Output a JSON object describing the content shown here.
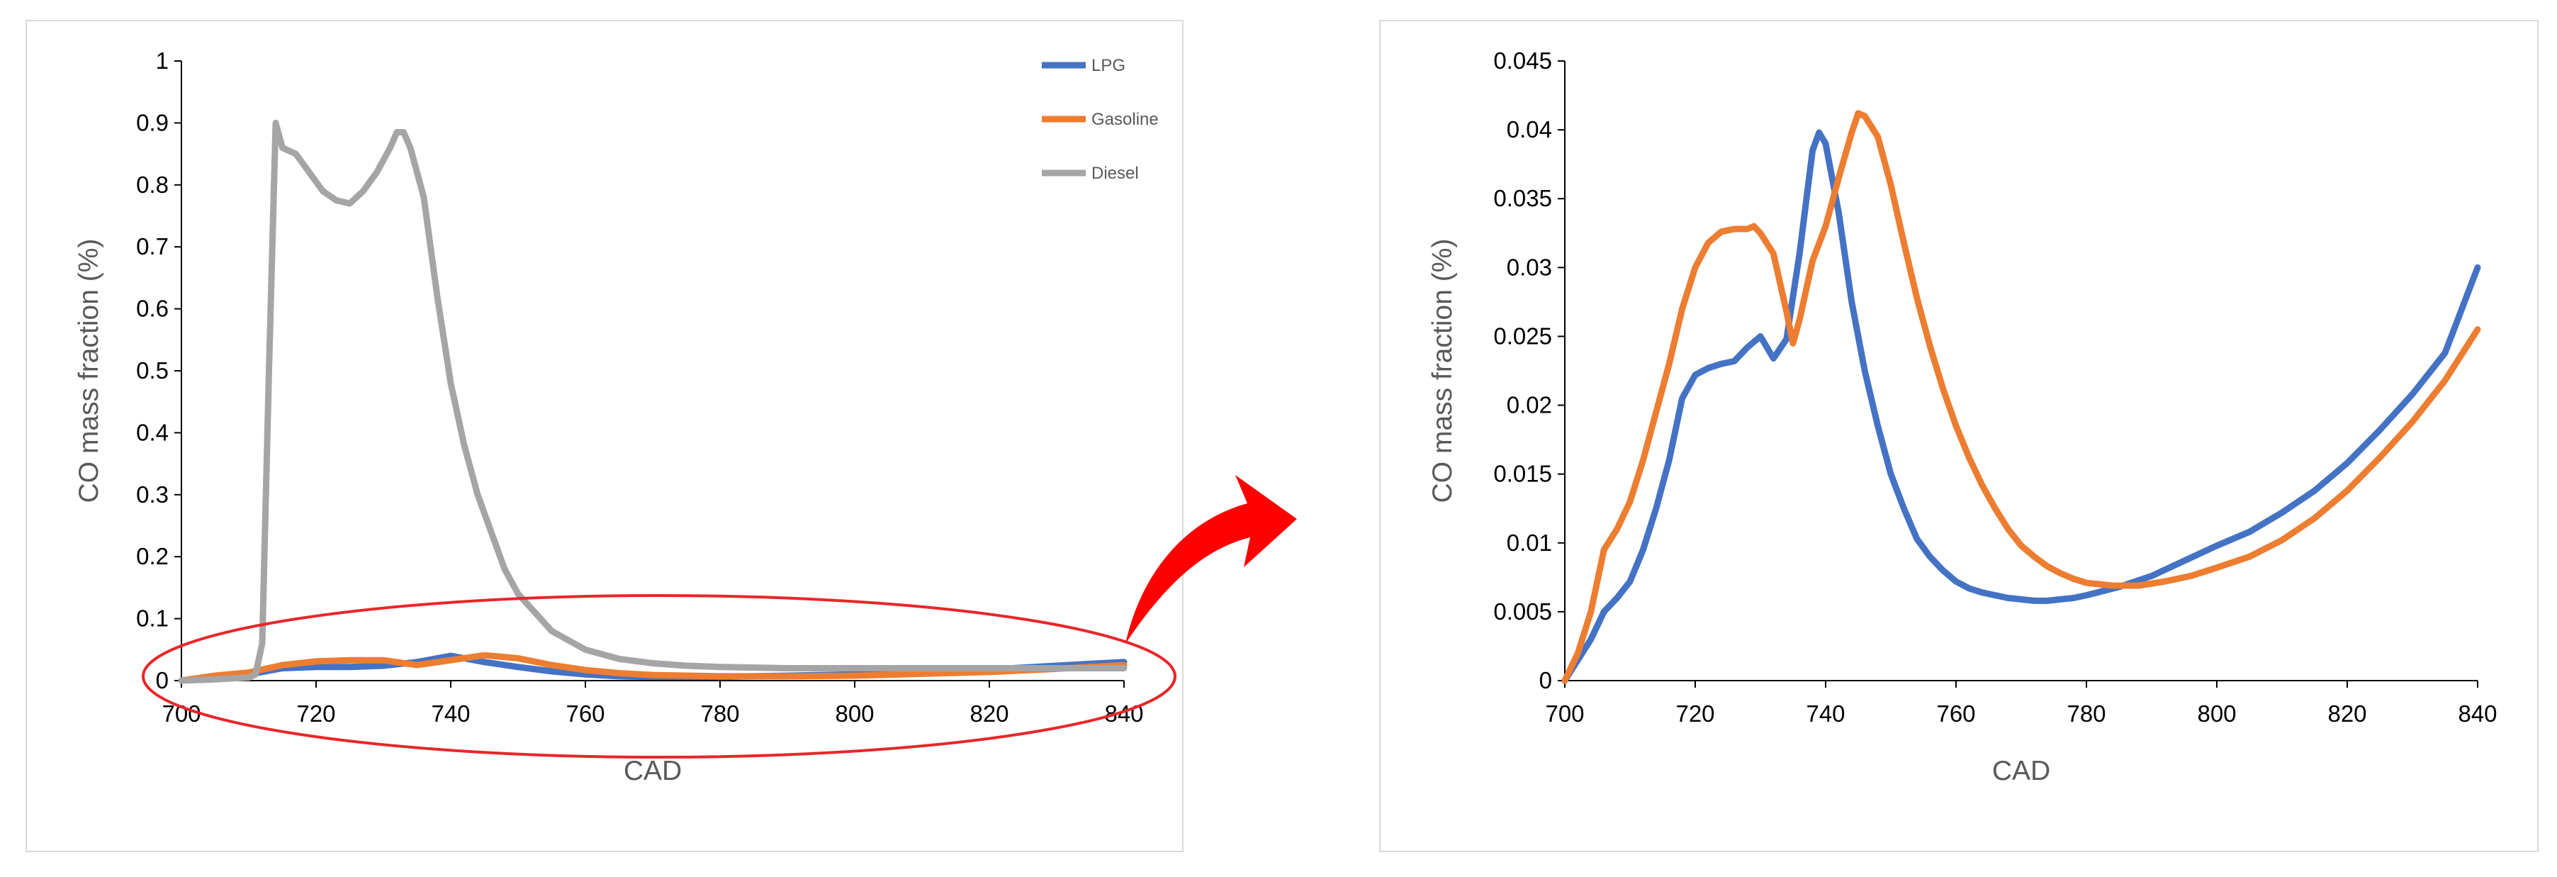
{
  "chart_data": [
    {
      "type": "line",
      "title": "",
      "xlabel": "CAD",
      "ylabel": "CO mass fraction (%)",
      "xlim": [
        700,
        840
      ],
      "ylim": [
        0,
        1
      ],
      "xticks": [
        "700",
        "720",
        "740",
        "760",
        "780",
        "800",
        "820",
        "840"
      ],
      "yticks": [
        "0",
        "0.1",
        "0.2",
        "0.3",
        "0.4",
        "0.5",
        "0.6",
        "0.7",
        "0.8",
        "0.9",
        "1"
      ],
      "legend_position": "top-right",
      "grid": false,
      "series": [
        {
          "name": "LPG",
          "color": "#4472C4",
          "x": [
            700,
            705,
            710,
            715,
            720,
            725,
            730,
            735,
            740,
            745,
            750,
            755,
            760,
            765,
            770,
            775,
            780,
            790,
            800,
            810,
            820,
            830,
            840
          ],
          "y": [
            0,
            0.005,
            0.01,
            0.02,
            0.022,
            0.022,
            0.024,
            0.03,
            0.04,
            0.03,
            0.022,
            0.015,
            0.01,
            0.007,
            0.006,
            0.006,
            0.006,
            0.008,
            0.01,
            0.014,
            0.018,
            0.024,
            0.03
          ]
        },
        {
          "name": "Gasoline",
          "color": "#ED7D31",
          "x": [
            700,
            705,
            710,
            715,
            720,
            725,
            730,
            735,
            740,
            745,
            750,
            755,
            760,
            765,
            770,
            775,
            780,
            790,
            800,
            810,
            820,
            830,
            840
          ],
          "y": [
            0,
            0.008,
            0.013,
            0.025,
            0.031,
            0.033,
            0.033,
            0.025,
            0.033,
            0.041,
            0.036,
            0.025,
            0.017,
            0.012,
            0.009,
            0.008,
            0.007,
            0.007,
            0.008,
            0.011,
            0.014,
            0.019,
            0.025
          ]
        },
        {
          "name": "Diesel",
          "color": "#A5A5A5",
          "x": [
            700,
            705,
            710,
            711,
            712,
            713,
            714,
            715,
            717,
            719,
            721,
            723,
            725,
            727,
            729,
            731,
            732,
            733,
            734,
            735,
            736,
            737,
            738,
            740,
            742,
            744,
            746,
            748,
            750,
            755,
            760,
            765,
            770,
            775,
            780,
            790,
            800,
            810,
            820,
            830,
            840
          ],
          "y": [
            0,
            0.002,
            0.005,
            0.01,
            0.06,
            0.5,
            0.9,
            0.86,
            0.85,
            0.82,
            0.79,
            0.775,
            0.77,
            0.79,
            0.82,
            0.86,
            0.885,
            0.885,
            0.86,
            0.82,
            0.78,
            0.7,
            0.62,
            0.48,
            0.38,
            0.3,
            0.24,
            0.18,
            0.14,
            0.08,
            0.05,
            0.035,
            0.028,
            0.024,
            0.022,
            0.02,
            0.02,
            0.02,
            0.02,
            0.02,
            0.02
          ]
        }
      ]
    },
    {
      "type": "line",
      "title": "",
      "xlabel": "CAD",
      "ylabel": "CO mass fraction (%)",
      "xlim": [
        700,
        840
      ],
      "ylim": [
        0,
        0.045
      ],
      "xticks": [
        "700",
        "720",
        "740",
        "760",
        "780",
        "800",
        "820",
        "840"
      ],
      "yticks": [
        "0",
        "0.005",
        "0.01",
        "0.015",
        "0.02",
        "0.025",
        "0.03",
        "0.035",
        "0.04",
        "0.045"
      ],
      "grid": false,
      "series": [
        {
          "color": "#4472C4",
          "x": [
            700,
            702,
            704,
            706,
            708,
            710,
            712,
            714,
            716,
            718,
            720,
            722,
            724,
            726,
            728,
            730,
            732,
            734,
            736,
            738,
            739,
            740,
            742,
            744,
            746,
            748,
            750,
            752,
            754,
            756,
            758,
            760,
            762,
            764,
            766,
            768,
            770,
            772,
            774,
            776,
            778,
            780,
            785,
            790,
            795,
            800,
            805,
            810,
            815,
            820,
            825,
            830,
            835,
            840
          ],
          "y": [
            0,
            0.0015,
            0.003,
            0.005,
            0.006,
            0.0072,
            0.0095,
            0.0125,
            0.016,
            0.0205,
            0.0222,
            0.0227,
            0.023,
            0.0232,
            0.0242,
            0.025,
            0.0234,
            0.0248,
            0.031,
            0.0385,
            0.0398,
            0.039,
            0.034,
            0.0275,
            0.0225,
            0.0185,
            0.015,
            0.0125,
            0.0103,
            0.009,
            0.008,
            0.0072,
            0.0067,
            0.0064,
            0.0062,
            0.006,
            0.0059,
            0.0058,
            0.0058,
            0.0059,
            0.006,
            0.0062,
            0.0068,
            0.0076,
            0.0087,
            0.0098,
            0.0108,
            0.0122,
            0.0138,
            0.0158,
            0.0182,
            0.0208,
            0.0238,
            0.03
          ]
        },
        {
          "color": "#ED7D31",
          "x": [
            700,
            702,
            704,
            706,
            708,
            710,
            712,
            714,
            716,
            718,
            720,
            722,
            724,
            726,
            728,
            729,
            730,
            732,
            734,
            735,
            736,
            738,
            740,
            742,
            744,
            745,
            746,
            748,
            750,
            752,
            754,
            756,
            758,
            760,
            762,
            764,
            766,
            768,
            770,
            772,
            774,
            776,
            778,
            780,
            784,
            788,
            792,
            796,
            800,
            805,
            810,
            815,
            820,
            825,
            830,
            835,
            840
          ],
          "y": [
            0,
            0.002,
            0.005,
            0.0095,
            0.011,
            0.013,
            0.016,
            0.0195,
            0.023,
            0.027,
            0.03,
            0.0318,
            0.0326,
            0.0328,
            0.0328,
            0.033,
            0.0325,
            0.031,
            0.0268,
            0.0245,
            0.0262,
            0.0305,
            0.033,
            0.0365,
            0.0398,
            0.0412,
            0.041,
            0.0395,
            0.036,
            0.0318,
            0.0278,
            0.0243,
            0.0212,
            0.0185,
            0.0162,
            0.0142,
            0.0125,
            0.011,
            0.0098,
            0.009,
            0.0083,
            0.0078,
            0.0074,
            0.0071,
            0.0069,
            0.0069,
            0.0072,
            0.0076,
            0.0082,
            0.009,
            0.0102,
            0.0118,
            0.0138,
            0.0162,
            0.0188,
            0.0218,
            0.0255
          ]
        }
      ]
    }
  ],
  "annotation": {
    "ellipse_color": "#e8262a",
    "arrow_color": "#ff0000"
  }
}
